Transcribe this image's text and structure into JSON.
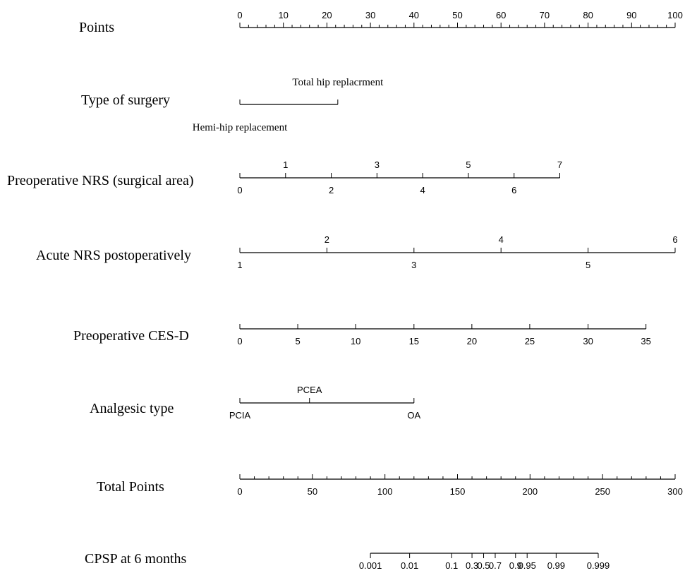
{
  "chart_data": {
    "type": "nomogram",
    "points_scale": {
      "label": "Points",
      "min": 0,
      "max": 100,
      "major_ticks": [
        0,
        10,
        20,
        30,
        40,
        50,
        60,
        70,
        80,
        90,
        100
      ],
      "minor_step": 2
    },
    "variables": [
      {
        "label": "Type of surgery",
        "kind": "categorical",
        "levels": [
          {
            "label": "Hemi-hip replacement",
            "points": 0,
            "side": "below"
          },
          {
            "label": "Total hip replacrment",
            "points": 22.5,
            "side": "above"
          }
        ]
      },
      {
        "label": "Preoperative NRS (surgical area)",
        "kind": "continuous",
        "ticks": [
          {
            "label": "0",
            "value": 0,
            "points": 0,
            "side": "below"
          },
          {
            "label": "1",
            "value": 1,
            "points": 10.5,
            "side": "above"
          },
          {
            "label": "2",
            "value": 2,
            "points": 21,
            "side": "below"
          },
          {
            "label": "3",
            "value": 3,
            "points": 31.5,
            "side": "above"
          },
          {
            "label": "4",
            "value": 4,
            "points": 42,
            "side": "below"
          },
          {
            "label": "5",
            "value": 5,
            "points": 52.5,
            "side": "above"
          },
          {
            "label": "6",
            "value": 6,
            "points": 63,
            "side": "below"
          },
          {
            "label": "7",
            "value": 7,
            "points": 73.5,
            "side": "above"
          }
        ]
      },
      {
        "label": "Acute NRS postoperatively",
        "kind": "continuous",
        "ticks": [
          {
            "label": "1",
            "value": 1,
            "points": 0,
            "side": "below"
          },
          {
            "label": "2",
            "value": 2,
            "points": 20,
            "side": "above"
          },
          {
            "label": "3",
            "value": 3,
            "points": 40,
            "side": "below"
          },
          {
            "label": "4",
            "value": 4,
            "points": 60,
            "side": "above"
          },
          {
            "label": "5",
            "value": 5,
            "points": 80,
            "side": "below"
          },
          {
            "label": "6",
            "value": 6,
            "points": 100,
            "side": "above"
          }
        ]
      },
      {
        "label": "Preoperative CES-D",
        "kind": "continuous",
        "ticks": [
          {
            "label": "0",
            "value": 0,
            "points": 0,
            "side": "below"
          },
          {
            "label": "5",
            "value": 5,
            "points": 13.3,
            "side": "below"
          },
          {
            "label": "10",
            "value": 10,
            "points": 26.6,
            "side": "below"
          },
          {
            "label": "15",
            "value": 15,
            "points": 40,
            "side": "below"
          },
          {
            "label": "20",
            "value": 20,
            "points": 53.3,
            "side": "below"
          },
          {
            "label": "25",
            "value": 25,
            "points": 66.6,
            "side": "below"
          },
          {
            "label": "30",
            "value": 30,
            "points": 80,
            "side": "below"
          },
          {
            "label": "35",
            "value": 35,
            "points": 93.3,
            "side": "below"
          }
        ]
      },
      {
        "label": "Analgesic type",
        "kind": "categorical",
        "levels": [
          {
            "label": "PCIA",
            "points": 0,
            "side": "below"
          },
          {
            "label": "PCEA",
            "points": 16,
            "side": "above"
          },
          {
            "label": "OA",
            "points": 40,
            "side": "below"
          }
        ]
      }
    ],
    "total_points_scale": {
      "label": "Total Points",
      "min": 0,
      "max": 300,
      "major_ticks": [
        0,
        50,
        100,
        150,
        200,
        250,
        300
      ],
      "minor_step": 10
    },
    "probability_scale": {
      "label": "CPSP at 6 months",
      "ticks": [
        {
          "label": "0.001",
          "total_points": 90
        },
        {
          "label": "0.01",
          "total_points": 117
        },
        {
          "label": "0.1",
          "total_points": 146
        },
        {
          "label": "0.3",
          "total_points": 160
        },
        {
          "label": "0.5",
          "total_points": 168
        },
        {
          "label": "0.7",
          "total_points": 176
        },
        {
          "label": "0.9",
          "total_points": 190
        },
        {
          "label": "0.95",
          "total_points": 198
        },
        {
          "label": "0.99",
          "total_points": 218
        },
        {
          "label": "0.999",
          "total_points": 247
        }
      ]
    }
  }
}
